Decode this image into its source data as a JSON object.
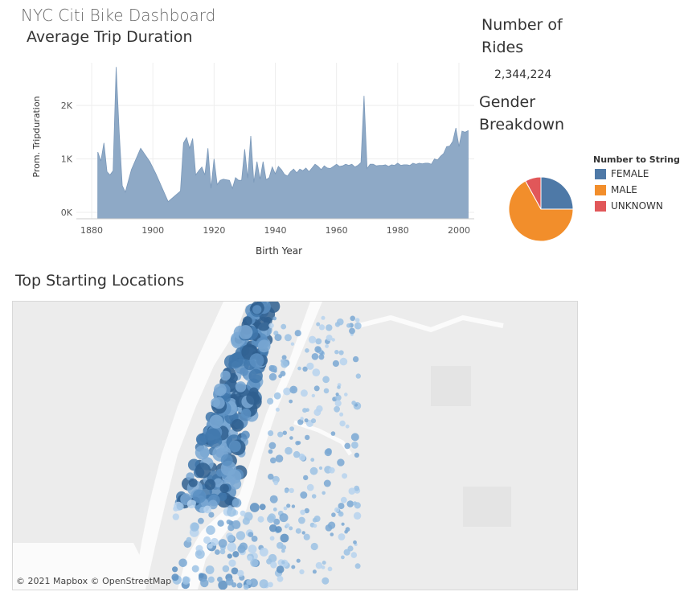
{
  "dashboard": {
    "title": "NYC Citi Bike Dashboard",
    "colors": {
      "area": "#8ea9c6",
      "area_stroke": "#7a98b9",
      "female": "#4e79a7",
      "male": "#f28e2b",
      "unknown": "#e15759",
      "map_bg": "#efefef",
      "water": "#ffffff"
    }
  },
  "rides": {
    "title": "Number of Rides",
    "value": "2,344,224"
  },
  "gender": {
    "title": "Gender Breakdown",
    "legend_title": "Number to String",
    "items": [
      {
        "label": "FEMALE",
        "color": "#4e79a7"
      },
      {
        "label": "MALE",
        "color": "#f28e2b"
      },
      {
        "label": "UNKNOWN",
        "color": "#e15759"
      }
    ]
  },
  "map": {
    "title": "Top Starting Locations",
    "credit": "© 2021 Mapbox © OpenStreetMap"
  },
  "chart_data": [
    {
      "type": "area",
      "title": "Average Trip Duration",
      "xlabel": "Birth Year",
      "ylabel": "Prom. Tripduration",
      "xlim": [
        1875,
        2005
      ],
      "ylim": [
        -120,
        2800
      ],
      "x_ticks": [
        1880,
        1900,
        1920,
        1940,
        1960,
        1980,
        2000
      ],
      "y_ticks": [
        {
          "value": 0,
          "label": "0K"
        },
        {
          "value": 1000,
          "label": "1K"
        },
        {
          "value": 2000,
          "label": "2K"
        }
      ],
      "grid": true,
      "x": [
        1882,
        1883,
        1884,
        1885,
        1886,
        1887,
        1888,
        1889,
        1890,
        1891,
        1893,
        1896,
        1899,
        1901,
        1905,
        1909,
        1910,
        1911,
        1912,
        1913,
        1914,
        1915,
        1916,
        1917,
        1918,
        1919,
        1920,
        1921,
        1922,
        1923,
        1924,
        1925,
        1926,
        1927,
        1928,
        1929,
        1930,
        1931,
        1932,
        1933,
        1934,
        1935,
        1936,
        1937,
        1938,
        1939,
        1940,
        1941,
        1942,
        1943,
        1944,
        1945,
        1946,
        1947,
        1948,
        1949,
        1950,
        1951,
        1952,
        1953,
        1954,
        1955,
        1956,
        1957,
        1958,
        1959,
        1960,
        1961,
        1962,
        1963,
        1964,
        1965,
        1966,
        1967,
        1968,
        1969,
        1970,
        1971,
        1972,
        1973,
        1974,
        1975,
        1976,
        1977,
        1978,
        1979,
        1980,
        1981,
        1982,
        1983,
        1984,
        1985,
        1986,
        1987,
        1988,
        1989,
        1990,
        1991,
        1992,
        1993,
        1994,
        1995,
        1996,
        1997,
        1998,
        1999,
        2000,
        2001,
        2002,
        2003
      ],
      "series": [
        {
          "values": [
            1130,
            960,
            1300,
            760,
            700,
            780,
            2720,
            1500,
            500,
            380,
            800,
            1200,
            950,
            720,
            200,
            400,
            1300,
            1400,
            1200,
            1380,
            700,
            780,
            850,
            700,
            1200,
            450,
            1000,
            520,
            600,
            620,
            610,
            600,
            450,
            650,
            600,
            600,
            1180,
            640,
            1430,
            560,
            950,
            620,
            950,
            610,
            650,
            850,
            720,
            860,
            800,
            710,
            680,
            760,
            810,
            740,
            810,
            780,
            830,
            760,
            830,
            900,
            860,
            800,
            870,
            830,
            820,
            860,
            900,
            860,
            870,
            900,
            880,
            900,
            850,
            880,
            930,
            2180,
            820,
            900,
            900,
            870,
            880,
            880,
            890,
            860,
            890,
            880,
            920,
            880,
            890,
            890,
            880,
            920,
            900,
            920,
            910,
            920,
            920,
            900,
            1000,
            980,
            1050,
            1100,
            1230,
            1240,
            1330,
            1580,
            1230,
            1520,
            1500,
            1530
          ]
        }
      ]
    },
    {
      "type": "pie",
      "title": "",
      "categories": [
        "FEMALE",
        "MALE",
        "UNKNOWN"
      ],
      "values": [
        25,
        67,
        8
      ],
      "colors": [
        "#4e79a7",
        "#f28e2b",
        "#e15759"
      ]
    }
  ]
}
